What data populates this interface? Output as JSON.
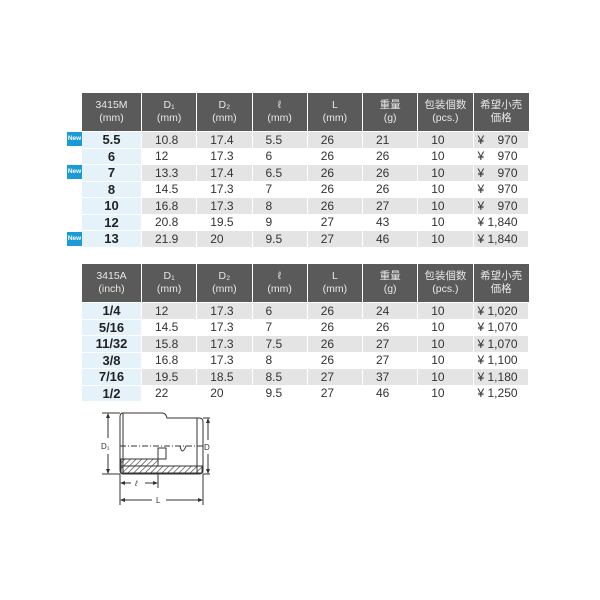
{
  "badge_label": "New",
  "metric": {
    "headers": [
      "3415M\n(mm)",
      "D₁\n(mm)",
      "D₂\n(mm)",
      "ℓ\n(mm)",
      "L\n(mm)",
      "重量\n(g)",
      "包装個数\n(pcs.)",
      "希望小売\n価格"
    ],
    "rows": [
      {
        "new": true,
        "cells": [
          "5.5",
          "10.8",
          "17.4",
          "5.5",
          "26",
          "21",
          "10",
          "¥    970"
        ]
      },
      {
        "new": false,
        "cells": [
          "6",
          "12",
          "17.3",
          "6",
          "26",
          "26",
          "10",
          "¥    970"
        ]
      },
      {
        "new": true,
        "cells": [
          "7",
          "13.3",
          "17.4",
          "6.5",
          "26",
          "26",
          "10",
          "¥    970"
        ]
      },
      {
        "new": false,
        "cells": [
          "8",
          "14.5",
          "17.3",
          "7",
          "26",
          "26",
          "10",
          "¥    970"
        ]
      },
      {
        "new": false,
        "cells": [
          "10",
          "16.8",
          "17.3",
          "8",
          "26",
          "27",
          "10",
          "¥    970"
        ]
      },
      {
        "new": false,
        "cells": [
          "12",
          "20.8",
          "19.5",
          "9",
          "27",
          "43",
          "10",
          "¥ 1,840"
        ]
      },
      {
        "new": true,
        "cells": [
          "13",
          "21.9",
          "20",
          "9.5",
          "27",
          "46",
          "10",
          "¥ 1,840"
        ]
      }
    ]
  },
  "inch": {
    "headers": [
      "3415A\n(inch)",
      "D₁\n(mm)",
      "D₂\n(mm)",
      "ℓ\n(mm)",
      "L\n(mm)",
      "重量\n(g)",
      "包装個数\n(pcs.)",
      "希望小売\n価格"
    ],
    "rows": [
      {
        "cells": [
          "1/4",
          "12",
          "17.3",
          "6",
          "26",
          "24",
          "10",
          "¥ 1,020"
        ]
      },
      {
        "cells": [
          "5/16",
          "14.5",
          "17.3",
          "7",
          "26",
          "26",
          "10",
          "¥ 1,070"
        ]
      },
      {
        "cells": [
          "11/32",
          "15.8",
          "17.3",
          "7.5",
          "26",
          "27",
          "10",
          "¥ 1,070"
        ]
      },
      {
        "cells": [
          "3/8",
          "16.8",
          "17.3",
          "8",
          "26",
          "27",
          "10",
          "¥ 1,100"
        ]
      },
      {
        "cells": [
          "7/16",
          "19.5",
          "18.5",
          "8.5",
          "27",
          "37",
          "10",
          "¥ 1,180"
        ]
      },
      {
        "cells": [
          "1/2",
          "22",
          "20",
          "9.5",
          "27",
          "46",
          "10",
          "¥ 1,250"
        ]
      }
    ]
  },
  "diagram": {
    "d1": "D₁",
    "d2": "D₂",
    "l_small": "ℓ",
    "l_big": "L"
  },
  "colors": {
    "header_bg": "#5a5a5a",
    "size_col_bg": "#e6f2fa",
    "stripe": "#e4e4e4",
    "new_badge": "#1b9ad8"
  }
}
